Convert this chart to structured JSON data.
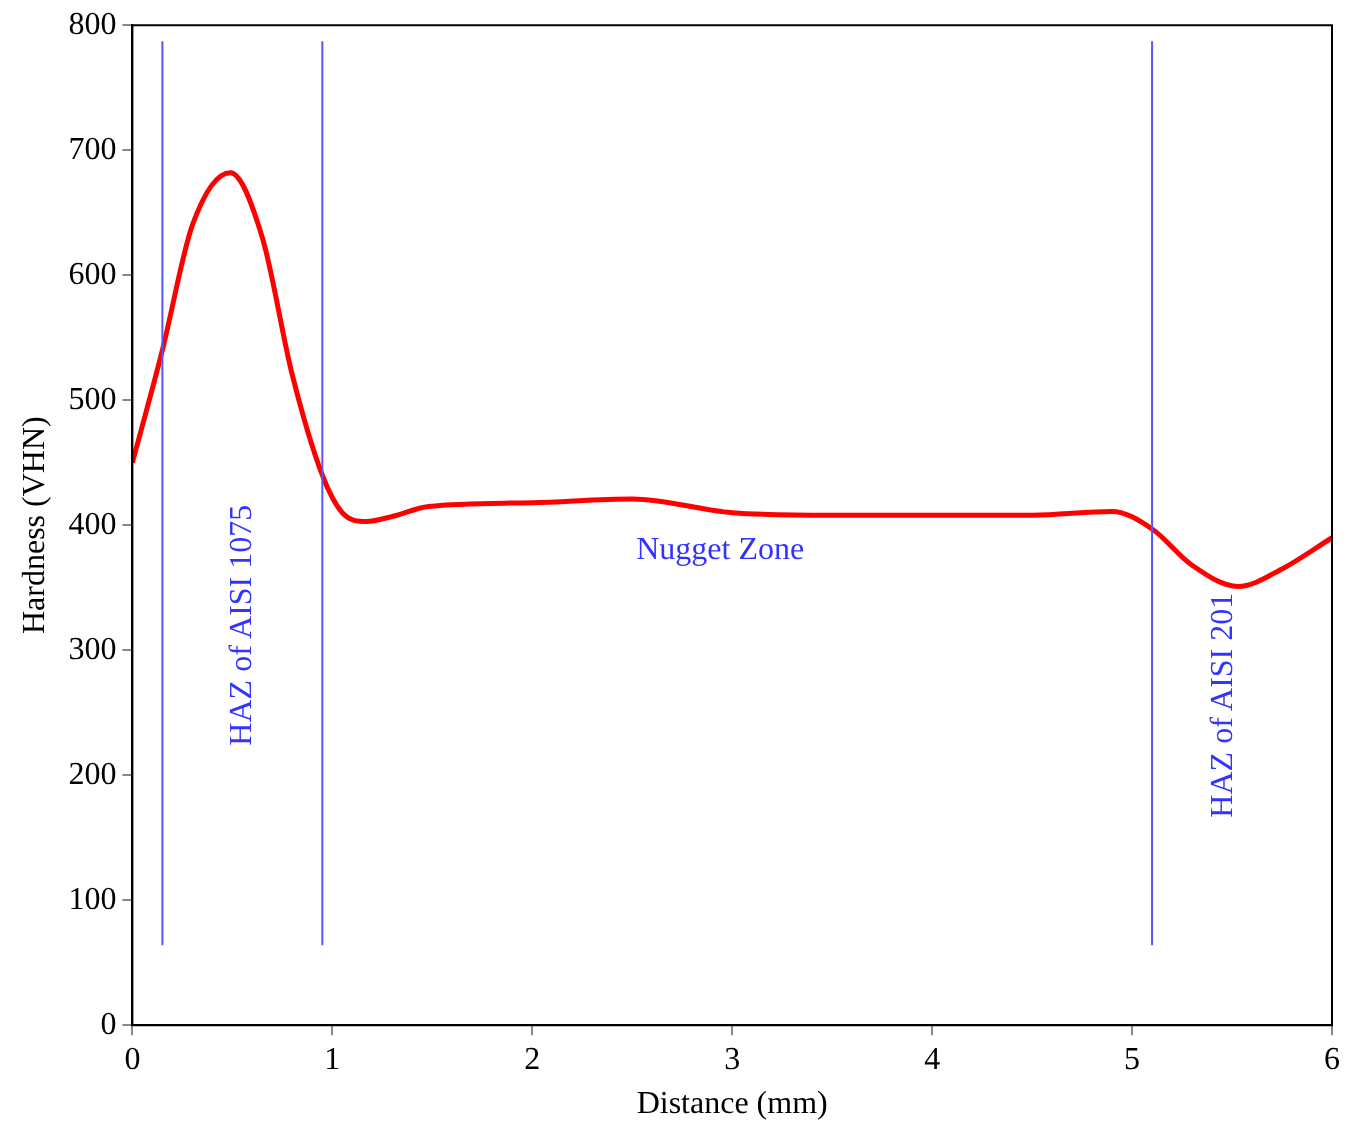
{
  "chart_data": {
    "type": "line",
    "xlabel": "Distance (mm)",
    "ylabel": "Hardness (VHN)",
    "x": [
      0,
      0.15,
      0.3,
      0.49,
      0.65,
      0.8,
      0.95,
      1.05,
      1.17,
      1.3,
      1.48,
      2,
      2.5,
      3,
      3.5,
      4,
      4.5,
      4.9,
      5.1,
      5.3,
      5.53,
      5.75,
      6
    ],
    "series": [
      {
        "color": "#ff0000",
        "values": [
          450,
          540,
          640,
          682,
          630,
          520,
          440,
          410,
          403,
          407,
          415,
          418,
          421,
          410,
          408,
          408,
          408,
          411,
          397,
          368,
          351,
          365,
          390
        ]
      }
    ],
    "xlim": [
      0,
      6
    ],
    "xticks": [
      0,
      1,
      2,
      3,
      4,
      5,
      6
    ],
    "ylim": [
      0,
      800
    ],
    "yticks": [
      0,
      100,
      200,
      300,
      400,
      500,
      600,
      700,
      800
    ],
    "ref_lines": [
      {
        "axis": "x",
        "value": 0.15,
        "color": "#5555ff"
      },
      {
        "axis": "x",
        "value": 0.95,
        "color": "#5555ff"
      },
      {
        "axis": "x",
        "value": 5.1,
        "color": "#5555ff"
      }
    ],
    "annotations": [
      "HAZ of AISI 1075",
      "Nugget Zone",
      "HAZ of AISI 201"
    ],
    "grid": false,
    "legend": false,
    "marker": "none",
    "line_style": "solid"
  }
}
